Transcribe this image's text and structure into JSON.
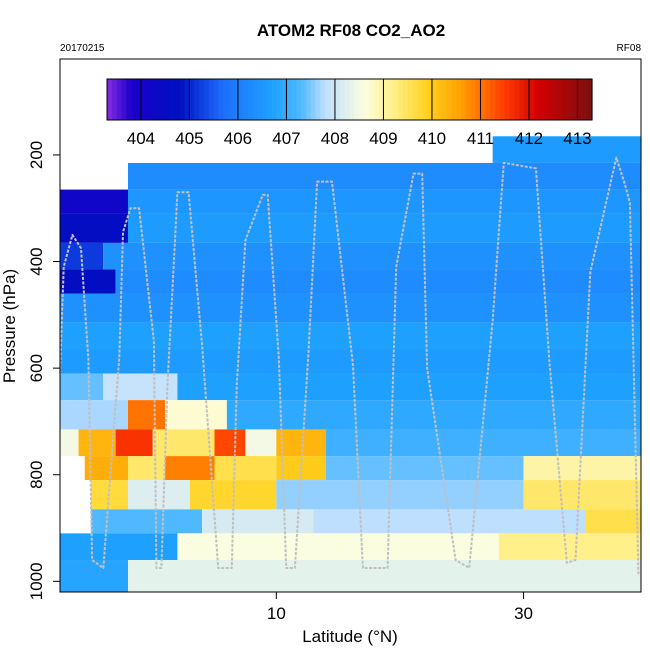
{
  "chart_data": {
    "type": "heatmap",
    "title": "ATOM2 RF08 CO2_AO2",
    "subtitle_left": "20170215",
    "subtitle_right": "RF08",
    "xlabel": "Latitude (°N)",
    "ylabel": "Pressure (hPa)",
    "xlim": [
      -7.5,
      39.5
    ],
    "ylim": [
      1020,
      20
    ],
    "y_reversed": true,
    "x_ticks": [
      10,
      30
    ],
    "y_ticks": [
      200,
      400,
      600,
      800,
      1000
    ],
    "grid": false,
    "colorbar": {
      "placement": "top",
      "range": [
        403.3,
        413.3
      ],
      "ticks": [
        404,
        405,
        406,
        407,
        408,
        409,
        410,
        411,
        412,
        413
      ],
      "stops": [
        {
          "v": 403.3,
          "c": "#8a2be2"
        },
        {
          "v": 403.8,
          "c": "#1a00cc"
        },
        {
          "v": 404.8,
          "c": "#0010c0"
        },
        {
          "v": 405.7,
          "c": "#1e6fff"
        },
        {
          "v": 406.7,
          "c": "#1ea0ff"
        },
        {
          "v": 407.3,
          "c": "#50b8ff"
        },
        {
          "v": 407.8,
          "c": "#bfdfff"
        },
        {
          "v": 408.6,
          "c": "#fbfde0"
        },
        {
          "v": 409.2,
          "c": "#fff08a"
        },
        {
          "v": 409.9,
          "c": "#ffd21e"
        },
        {
          "v": 410.6,
          "c": "#ffa000"
        },
        {
          "v": 411.5,
          "c": "#ff3c00"
        },
        {
          "v": 412.2,
          "c": "#d20000"
        },
        {
          "v": 413.3,
          "c": "#7a1010"
        }
      ]
    },
    "cells": [
      {
        "x0": 27.5,
        "x1": 39.5,
        "p0": 165,
        "p1": 215,
        "v": 406.6
      },
      {
        "x0": -2.0,
        "x1": 39.5,
        "p0": 215,
        "p1": 265,
        "v": 406.3
      },
      {
        "x0": -7.5,
        "x1": -2.0,
        "p0": 265,
        "p1": 310,
        "v": 404.2
      },
      {
        "x0": -2.0,
        "x1": 39.5,
        "p0": 265,
        "p1": 310,
        "v": 406.5
      },
      {
        "x0": -7.5,
        "x1": -2.0,
        "p0": 310,
        "p1": 365,
        "v": 404.6
      },
      {
        "x0": -2.0,
        "x1": 39.5,
        "p0": 310,
        "p1": 365,
        "v": 406.6
      },
      {
        "x0": -7.5,
        "x1": -4.0,
        "p0": 365,
        "p1": 415,
        "v": 405.2
      },
      {
        "x0": -4.0,
        "x1": 39.5,
        "p0": 365,
        "p1": 415,
        "v": 406.4
      },
      {
        "x0": -7.5,
        "x1": -3.0,
        "p0": 415,
        "p1": 460,
        "v": 404.6
      },
      {
        "x0": -3.0,
        "x1": 39.5,
        "p0": 415,
        "p1": 460,
        "v": 406.3
      },
      {
        "x0": -7.5,
        "x1": 39.5,
        "p0": 460,
        "p1": 515,
        "v": 406.4
      },
      {
        "x0": -7.5,
        "x1": 39.5,
        "p0": 515,
        "p1": 565,
        "v": 406.7
      },
      {
        "x0": -7.5,
        "x1": 39.5,
        "p0": 565,
        "p1": 610,
        "v": 406.6
      },
      {
        "x0": -7.5,
        "x1": -4.0,
        "p0": 610,
        "p1": 660,
        "v": 407.4
      },
      {
        "x0": -4.0,
        "x1": 2.0,
        "p0": 610,
        "p1": 660,
        "v": 407.9
      },
      {
        "x0": 2.0,
        "x1": 39.5,
        "p0": 610,
        "p1": 660,
        "v": 406.7
      },
      {
        "x0": -7.5,
        "x1": -2.0,
        "p0": 660,
        "p1": 715,
        "v": 407.7
      },
      {
        "x0": -2.0,
        "x1": 1.0,
        "p0": 660,
        "p1": 715,
        "v": 411.0
      },
      {
        "x0": 1.0,
        "x1": 6.0,
        "p0": 660,
        "p1": 715,
        "v": 408.7
      },
      {
        "x0": 6.0,
        "x1": 39.5,
        "p0": 660,
        "p1": 715,
        "v": 406.9
      },
      {
        "x0": -7.5,
        "x1": -6.0,
        "p0": 715,
        "p1": 765,
        "v": 408.5
      },
      {
        "x0": -6.0,
        "x1": -3.0,
        "p0": 715,
        "p1": 765,
        "v": 410.3
      },
      {
        "x0": -3.0,
        "x1": 0.0,
        "p0": 715,
        "p1": 765,
        "v": 411.6
      },
      {
        "x0": 0.0,
        "x1": 5.0,
        "p0": 715,
        "p1": 765,
        "v": 409.4
      },
      {
        "x0": 5.0,
        "x1": 7.5,
        "p0": 715,
        "p1": 765,
        "v": 411.4
      },
      {
        "x0": 7.5,
        "x1": 10.0,
        "p0": 715,
        "p1": 765,
        "v": 408.5
      },
      {
        "x0": 10.0,
        "x1": 14.0,
        "p0": 715,
        "p1": 765,
        "v": 410.3
      },
      {
        "x0": 14.0,
        "x1": 39.5,
        "p0": 715,
        "p1": 765,
        "v": 407.1
      },
      {
        "x0": -5.5,
        "x1": -2.0,
        "p0": 765,
        "p1": 810,
        "v": 410.4
      },
      {
        "x0": -2.0,
        "x1": 1.0,
        "p0": 765,
        "p1": 810,
        "v": 409.4
      },
      {
        "x0": 1.0,
        "x1": 5.0,
        "p0": 765,
        "p1": 810,
        "v": 410.9
      },
      {
        "x0": 5.0,
        "x1": 10.0,
        "p0": 765,
        "p1": 810,
        "v": 409.6
      },
      {
        "x0": 10.0,
        "x1": 14.0,
        "p0": 765,
        "p1": 810,
        "v": 410.0
      },
      {
        "x0": 14.0,
        "x1": 30.0,
        "p0": 765,
        "p1": 810,
        "v": 407.4
      },
      {
        "x0": 30.0,
        "x1": 39.5,
        "p0": 765,
        "p1": 810,
        "v": 409.0
      },
      {
        "x0": -5.0,
        "x1": -2.0,
        "p0": 810,
        "p1": 865,
        "v": 409.7
      },
      {
        "x0": -2.0,
        "x1": 3.0,
        "p0": 810,
        "p1": 865,
        "v": 408.2
      },
      {
        "x0": 3.0,
        "x1": 10.0,
        "p0": 810,
        "p1": 865,
        "v": 409.8
      },
      {
        "x0": 10.0,
        "x1": 30.0,
        "p0": 810,
        "p1": 865,
        "v": 407.6
      },
      {
        "x0": 30.0,
        "x1": 39.5,
        "p0": 810,
        "p1": 865,
        "v": 409.4
      },
      {
        "x0": -5.0,
        "x1": 4.0,
        "p0": 865,
        "p1": 910,
        "v": 407.3
      },
      {
        "x0": 4.0,
        "x1": 13.0,
        "p0": 865,
        "p1": 910,
        "v": 408.1
      },
      {
        "x0": 13.0,
        "x1": 35.0,
        "p0": 865,
        "p1": 910,
        "v": 407.8
      },
      {
        "x0": 35.0,
        "x1": 39.5,
        "p0": 865,
        "p1": 910,
        "v": 409.6
      },
      {
        "x0": -7.5,
        "x1": 2.0,
        "p0": 910,
        "p1": 960,
        "v": 406.7
      },
      {
        "x0": 2.0,
        "x1": 28.0,
        "p0": 910,
        "p1": 960,
        "v": 408.6
      },
      {
        "x0": 28.0,
        "x1": 39.5,
        "p0": 910,
        "p1": 960,
        "v": 409.2
      },
      {
        "x0": -7.5,
        "x1": -2.0,
        "p0": 960,
        "p1": 1020,
        "v": 406.8
      },
      {
        "x0": -2.0,
        "x1": 39.5,
        "p0": 960,
        "p1": 1020,
        "v": 408.3
      }
    ],
    "flight_track": {
      "color": "#c0c0c0",
      "lon": [
        -7.5,
        -7.2,
        -6.5,
        -5.8,
        -5.2,
        -4.9,
        -4.0,
        -2.7,
        -2.4,
        -1.8,
        -1.1,
        0.1,
        0.3,
        0.7,
        1.2,
        1.8,
        2.0,
        2.9,
        4.0,
        5.3,
        6.4,
        6.8,
        7.5,
        8.9,
        9.3,
        10.2,
        10.8,
        11.5,
        12.6,
        13.3,
        14.5,
        16.2,
        17.0,
        19.0,
        19.7,
        21.1,
        21.8,
        22.2,
        24.5,
        25.6,
        27.5,
        28.0,
        28.4,
        31.0,
        32.1,
        33.5,
        34.2,
        35.4,
        37.5,
        38.2,
        38.6,
        39.3
      ],
      "p": [
        610,
        410,
        350,
        375,
        585,
        960,
        975,
        580,
        345,
        300,
        300,
        550,
        975,
        975,
        630,
        360,
        270,
        270,
        560,
        975,
        975,
        630,
        360,
        275,
        275,
        580,
        975,
        975,
        570,
        250,
        250,
        595,
        975,
        975,
        410,
        235,
        235,
        600,
        960,
        975,
        510,
        345,
        215,
        225,
        590,
        965,
        960,
        420,
        205,
        255,
        290,
        990
      ]
    }
  }
}
